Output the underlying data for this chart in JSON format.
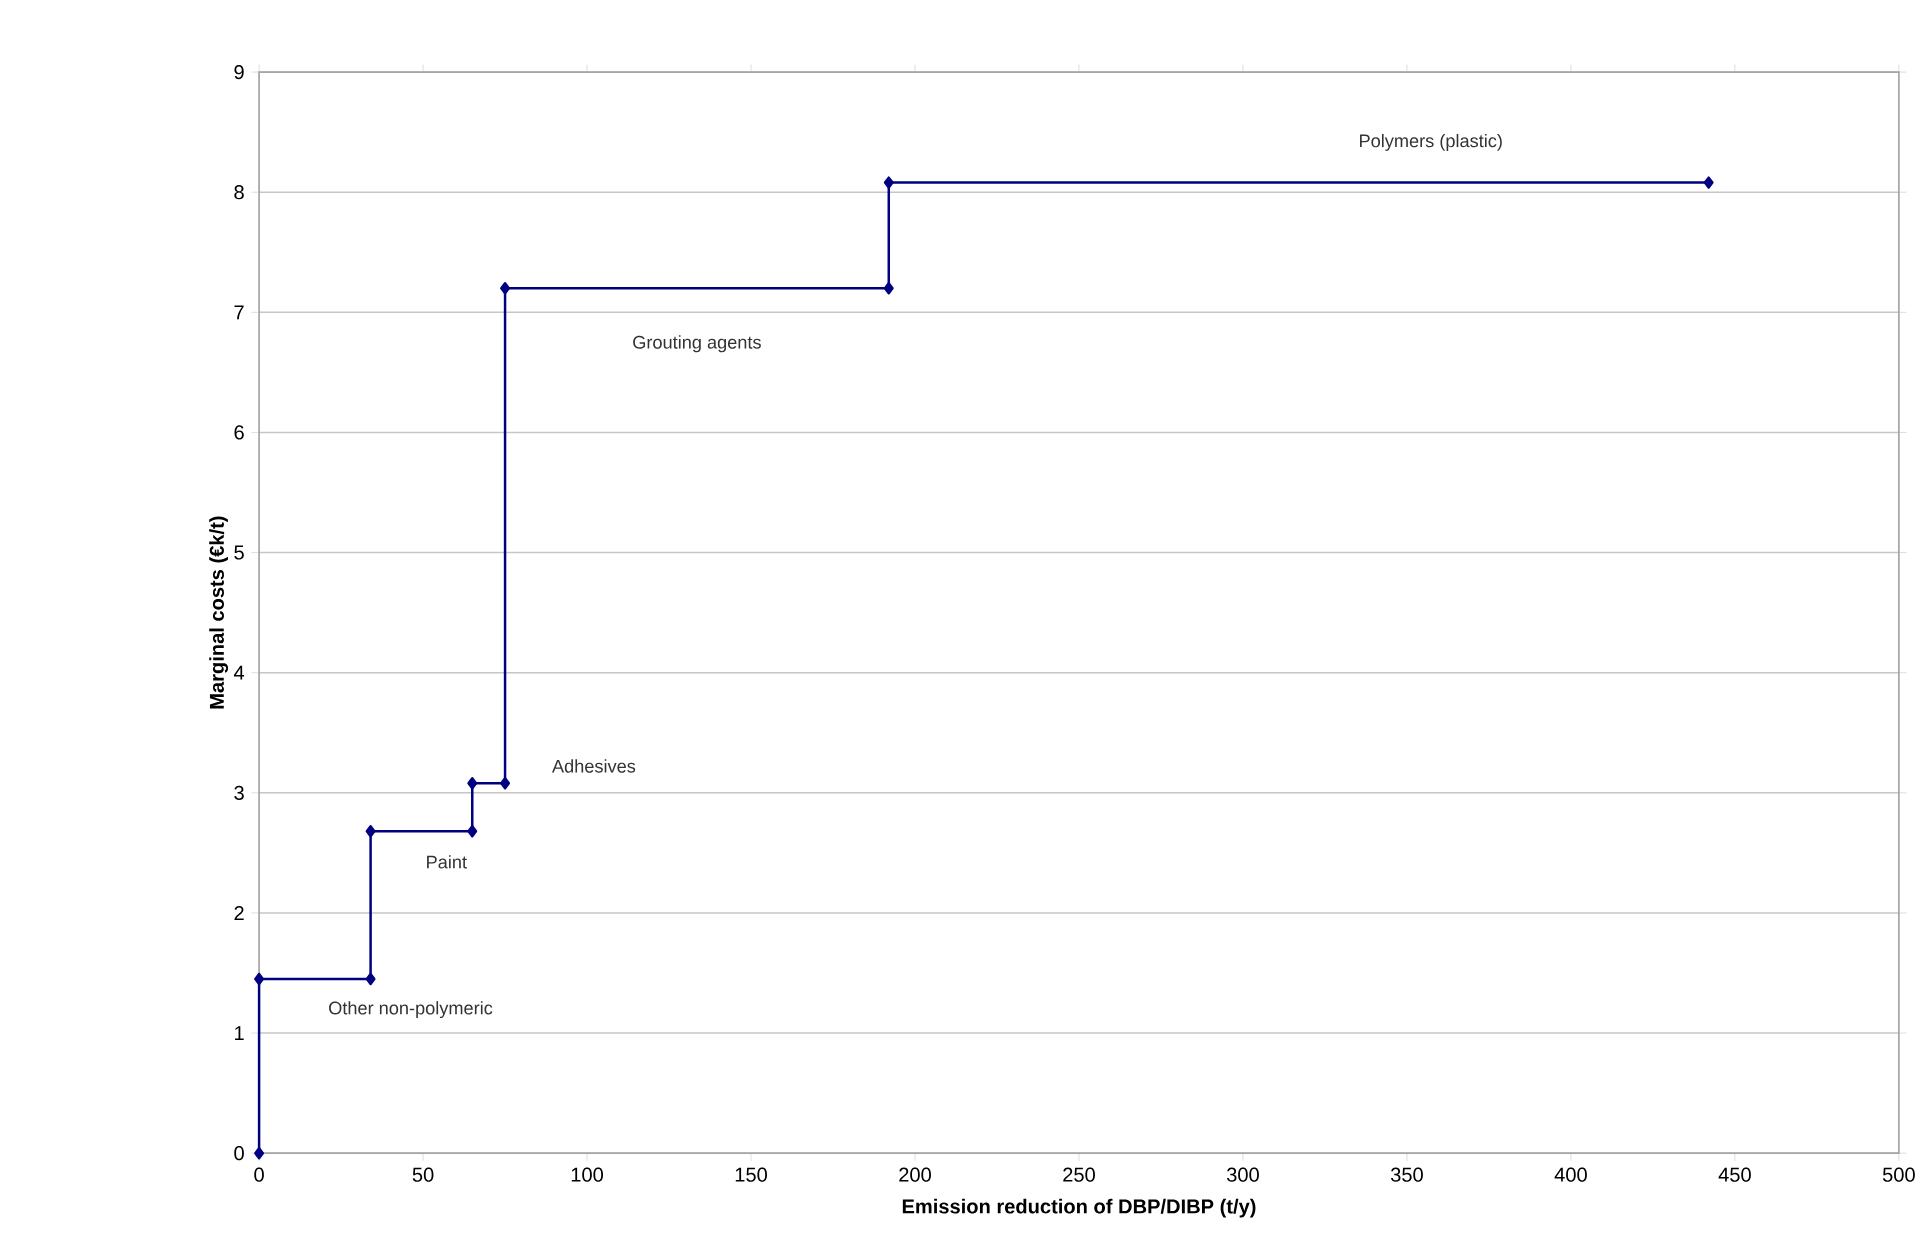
{
  "chart_data": {
    "type": "line",
    "xlabel": "Emission reduction of  DBP/DIBP (t/y)",
    "ylabel": "Marginal costs (€k/t)",
    "series": [
      {
        "color": "#000080",
        "x": [
          0,
          0,
          34,
          34,
          65,
          65,
          75,
          75,
          192,
          192,
          442
        ],
        "values": [
          0,
          1.45,
          1.45,
          2.68,
          2.68,
          3.08,
          3.08,
          7.2,
          7.2,
          8.08,
          8.08
        ]
      }
    ],
    "xlim": [
      0,
      500
    ],
    "ylim": [
      0,
      9
    ],
    "xticks": [
      0,
      50,
      100,
      150,
      200,
      250,
      300,
      350,
      400,
      450,
      500
    ],
    "yticks": [
      0,
      1,
      2,
      3,
      4,
      5,
      6,
      7,
      8,
      9
    ],
    "grid": "y",
    "marker": "diamond",
    "line_style": "solid",
    "legend": false,
    "annotations": [
      "Other non-polymeric",
      "Paint",
      "Adhesives",
      "Grouting agents",
      "Polymers (plastic)"
    ]
  }
}
